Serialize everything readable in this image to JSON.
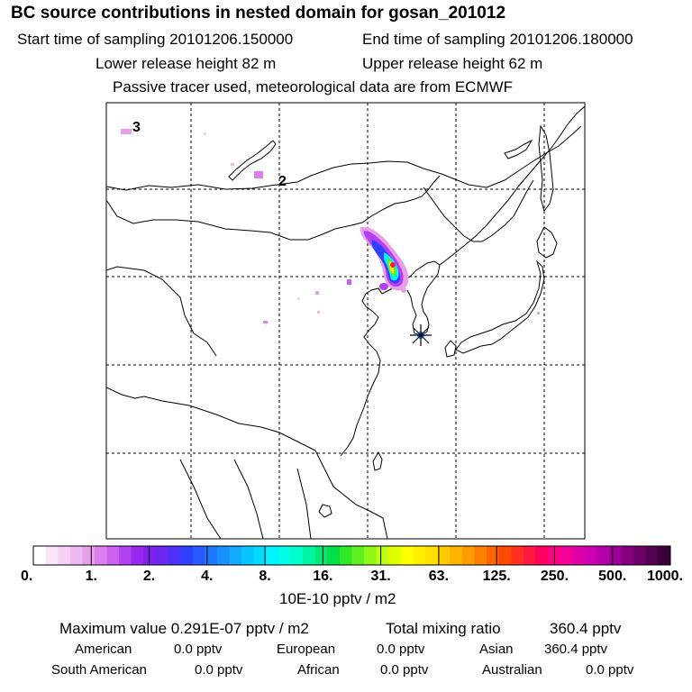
{
  "title": "BC  source contributions in nested domain for gosan_201012",
  "header": {
    "start_label": "Start time of sampling 20101206.150000",
    "end_label": "End time of sampling 20101206.180000",
    "lower_label": "Lower release height   82 m",
    "upper_label": "Upper release height   62 m",
    "tracer_note": "Passive tracer used, meteorological data are from ECMWF"
  },
  "map": {
    "labels": [
      "3",
      "2"
    ],
    "receptor_symbol": "asterisk-icon"
  },
  "colorbar": {
    "unit_label": "10E-10 pptv / m2",
    "tick_labels": [
      "0.",
      "1.",
      "2.",
      "4.",
      "8.",
      "16.",
      "31.",
      "63.",
      "125.",
      "250.",
      "500.",
      "1000."
    ],
    "colors": [
      "#ffffff",
      "#fae6fa",
      "#f6d2f6",
      "#f0b8f0",
      "#e89ee8",
      "#dc80ee",
      "#cc60f0",
      "#b040f0",
      "#9828f0",
      "#8020ee",
      "#6a28f0",
      "#5030f8",
      "#3040ff",
      "#2858ff",
      "#1e78ff",
      "#1890ff",
      "#10aaff",
      "#08c4ff",
      "#00dcff",
      "#00f4ff",
      "#00ffe8",
      "#00ffc8",
      "#00f5a0",
      "#00e878",
      "#00e048",
      "#30e828",
      "#60f020",
      "#90f818",
      "#c0ff10",
      "#e0ff00",
      "#ffff00",
      "#fff000",
      "#ffe000",
      "#ffcc00",
      "#ffb400",
      "#ff9c00",
      "#ff8000",
      "#ff6400",
      "#ff4800",
      "#ff3020",
      "#ff1840",
      "#ff0060",
      "#ff0080",
      "#f40098",
      "#e000a8",
      "#cc00b0",
      "#b400a8",
      "#9c0098",
      "#840080",
      "#6c0068",
      "#540050",
      "#3c0038"
    ]
  },
  "stats": {
    "max_label": "Maximum value  0.291E-07 pptv / m2",
    "total_label": "Total mixing ratio",
    "total_value": "360.4 pptv",
    "regions": [
      {
        "name": "American",
        "value": "0.0 pptv"
      },
      {
        "name": "European",
        "value": "0.0 pptv"
      },
      {
        "name": "Asian",
        "value": "360.4 pptv"
      },
      {
        "name": "South American",
        "value": "0.0 pptv"
      },
      {
        "name": "African",
        "value": "0.0 pptv"
      },
      {
        "name": "Australian",
        "value": "0.0 pptv"
      }
    ]
  }
}
